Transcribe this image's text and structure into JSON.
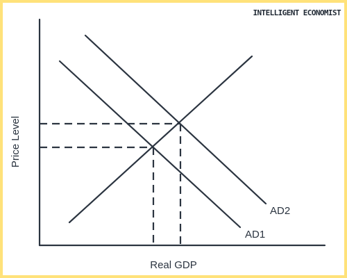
{
  "brand": {
    "text": "INTELLIGENT ECONOMIST",
    "color": "#1f2833"
  },
  "axes": {
    "x_label": "Real GDP",
    "y_label": "Price Level"
  },
  "curves": {
    "ad1_label": "AD1",
    "ad2_label": "AD2"
  },
  "colors": {
    "line": "#2b3440",
    "border": "#FFE27A",
    "background": "#ffffff"
  }
}
